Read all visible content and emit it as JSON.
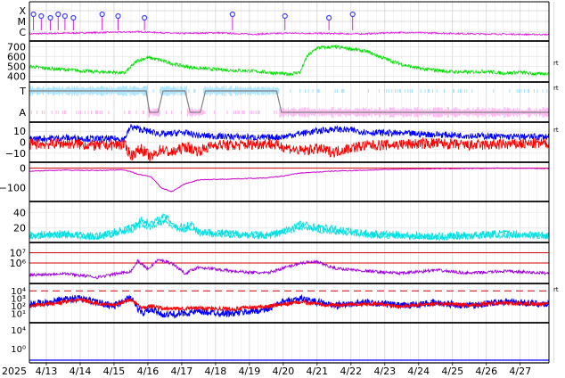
{
  "chart_data": {
    "type": "line",
    "year_label": "2025",
    "x_ticks": [
      "4/13",
      "4/14",
      "4/15",
      "4/16",
      "4/17",
      "4/18",
      "4/19",
      "4/20",
      "4/21",
      "4/22",
      "4/23",
      "4/24",
      "4/25",
      "4/26",
      "4/27"
    ],
    "x_range_days": [
      0,
      15.35
    ],
    "side_marks": [
      "rt",
      "rt",
      "rt",
      "rt"
    ],
    "panels": [
      {
        "id": "xray-flares",
        "tick_labels": [
          "X",
          "M",
          "C"
        ],
        "color": "#e020e0",
        "marker_color": "#4040ff",
        "marker_days": [
          0.12,
          0.35,
          0.62,
          0.85,
          1.05,
          1.3,
          2.15,
          2.62,
          3.4,
          6.0,
          7.55,
          8.85,
          9.55
        ],
        "series": [
          {
            "values": [
              0.34,
              0.36,
              0.38,
              0.4,
              0.35,
              0.37,
              0.33,
              0.36,
              0.35,
              0.34,
              0.38,
              0.36,
              0.34,
              0.33,
              0.32
            ]
          }
        ]
      },
      {
        "id": "solar-wind-speed",
        "tick_labels": [
          "700",
          "600",
          "500",
          "400"
        ],
        "ylim": [
          340,
          760
        ],
        "color": "#00e000",
        "series": [
          {
            "x": [
              0,
              0.5,
              1,
              1.5,
              2,
              2.5,
              2.8,
              3.2,
              3.5,
              3.8,
              4.2,
              4.6,
              5,
              5.5,
              6,
              6.5,
              7,
              7.3,
              7.6,
              8,
              8.2,
              8.5,
              9,
              9.5,
              10,
              10.5,
              11,
              11.5,
              12,
              12.5,
              13,
              13.5,
              14,
              14.5,
              15,
              15.35
            ],
            "values": [
              500,
              480,
              470,
              455,
              445,
              440,
              430,
              560,
              590,
              570,
              530,
              500,
              480,
              470,
              460,
              455,
              440,
              430,
              420,
              440,
              600,
              690,
              700,
              680,
              650,
              580,
              520,
              480,
              460,
              445,
              440,
              450,
              430,
              440,
              420,
              430
            ]
          }
        ]
      },
      {
        "id": "magnetic-sector",
        "tick_labels": [
          "T",
          "A"
        ],
        "toward_color": "#a0e0ff",
        "away_color": "#ffb0f0",
        "line_color": "#808080",
        "series": [
          {
            "x": [
              0,
              3.45,
              3.55,
              3.8,
              3.95,
              4.6,
              4.75,
              5.05,
              5.2,
              7.3,
              7.45,
              15.35
            ],
            "values": [
              1,
              1,
              0,
              0,
              1,
              1,
              0,
              0,
              1,
              1,
              0,
              0
            ]
          }
        ]
      },
      {
        "id": "imf-components",
        "tick_labels": [
          "10",
          "0",
          "−10"
        ],
        "ylim": [
          -15,
          15
        ],
        "series": [
          {
            "color": "#0000ff",
            "x": [
              0,
              1,
              2,
              2.8,
              3,
              3.5,
              4,
              4.5,
              5,
              6,
              7,
              7.5,
              8,
              8.5,
              9,
              9.5,
              10,
              11,
              12,
              13,
              14,
              15.35
            ],
            "values": [
              3,
              4,
              3,
              3,
              14,
              10,
              7,
              9,
              6,
              5,
              4,
              5,
              8,
              10,
              12,
              11,
              9,
              8,
              7,
              6,
              5,
              5
            ]
          },
          {
            "color": "#ff0000",
            "x": [
              0,
              1,
              2,
              2.8,
              3,
              3.3,
              3.6,
              3.9,
              4.2,
              4.6,
              5,
              5.5,
              6,
              7,
              7.5,
              8,
              8.5,
              9,
              9.5,
              10,
              11,
              12,
              13,
              14,
              15.35
            ],
            "values": [
              -2,
              -1,
              -3,
              -2,
              -12,
              -6,
              -14,
              -6,
              -10,
              -4,
              -8,
              -2,
              -3,
              -1,
              -4,
              -8,
              -6,
              -9,
              -5,
              -3,
              -2,
              -1,
              -3,
              -2,
              -1
            ]
          }
        ]
      },
      {
        "id": "dst-index",
        "tick_labels": [
          "0",
          "−100"
        ],
        "ylim": [
          -170,
          30
        ],
        "series": [
          {
            "color": "#cc00cc",
            "x": [
              0,
              1,
              2,
              2.8,
              3.2,
              3.6,
              3.9,
              4.2,
              4.6,
              5,
              6,
              7,
              7.5,
              8,
              8.5,
              9,
              10,
              11,
              12,
              13,
              14,
              15.35
            ],
            "values": [
              -15,
              -10,
              -12,
              -8,
              -30,
              -45,
              -100,
              -120,
              -80,
              -60,
              -55,
              -50,
              -40,
              -25,
              -20,
              -15,
              -10,
              -5,
              -3,
              -2,
              0,
              -2
            ]
          }
        ]
      },
      {
        "id": "kp-like-index",
        "tick_labels": [
          "40",
          "20"
        ],
        "ylim": [
          0,
          55
        ],
        "color": "#00e0e0",
        "series": [
          {
            "x": [
              0,
              1,
              2,
              3,
              3.3,
              3.6,
              4,
              4.4,
              4.8,
              5,
              6,
              7,
              7.5,
              8,
              8.5,
              9,
              10,
              11,
              12,
              13,
              14,
              15.35
            ],
            "values": [
              10,
              12,
              8,
              20,
              30,
              25,
              35,
              20,
              25,
              15,
              12,
              10,
              15,
              25,
              20,
              18,
              12,
              10,
              8,
              10,
              12,
              10
            ]
          }
        ]
      },
      {
        "id": "electron-flux",
        "tick_labels": [
          "10⁷",
          "10⁶"
        ],
        "ylim_log": [
          4,
          8
        ],
        "color": "#a000e0",
        "ref_levels": [
          7,
          6
        ],
        "ref_color": "#d00000",
        "series": [
          {
            "x": [
              0,
              1,
              2,
              3,
              3.2,
              3.5,
              3.8,
              4.2,
              4.6,
              5,
              6,
              7,
              7.5,
              8,
              8.5,
              9,
              10,
              11,
              12,
              13,
              14,
              15.35
            ],
            "values": [
              4.8,
              5.0,
              4.6,
              5.2,
              6.2,
              5.4,
              6.3,
              6.0,
              5.0,
              5.6,
              5.2,
              5.0,
              5.5,
              6.0,
              6.1,
              5.5,
              5.2,
              5.0,
              5.3,
              5.0,
              5.2,
              5.0
            ]
          }
        ]
      },
      {
        "id": "proton-flux",
        "tick_labels": [
          "10⁴",
          "10³",
          "10²",
          "10¹"
        ],
        "ylim_log": [
          0,
          4.5
        ],
        "ref_level": 4,
        "ref_color": "#d00000",
        "series": [
          {
            "color": "#0000ff",
            "x": [
              0,
              1,
              1.5,
              2,
              2.5,
              3,
              3.3,
              3.6,
              4,
              5,
              6,
              7,
              7.5,
              8,
              9,
              10,
              11,
              12,
              13,
              14,
              15.35
            ],
            "values": [
              2.2,
              2.8,
              3.0,
              2.5,
              2.0,
              3.2,
              1.0,
              1.5,
              0.8,
              1.2,
              1.0,
              1.5,
              2.5,
              3.0,
              2.0,
              2.5,
              2.0,
              2.4,
              2.0,
              2.6,
              2.2
            ]
          },
          {
            "color": "#ff0000",
            "x": [
              0,
              1,
              1.5,
              2,
              2.5,
              3,
              3.3,
              3.6,
              4,
              5,
              6,
              7,
              7.5,
              8,
              9,
              10,
              11,
              12,
              13,
              14,
              15.35
            ],
            "values": [
              2.0,
              2.5,
              2.8,
              2.3,
              2.1,
              2.9,
              1.8,
              2.0,
              1.6,
              1.7,
              1.6,
              1.9,
              2.2,
              2.5,
              2.1,
              2.3,
              2.0,
              2.3,
              2.1,
              2.4,
              2.2
            ]
          }
        ]
      },
      {
        "id": "high-energy-flux",
        "tick_labels": [
          "10⁴",
          "10⁰"
        ],
        "color": "#0000ff",
        "series": [
          {
            "values": [
              0.1,
              0.1,
              0.1,
              0.1,
              0.1,
              0.1,
              0.1,
              0.1,
              0.1,
              0.1,
              0.1,
              0.1,
              0.1,
              0.1,
              0.1
            ]
          }
        ]
      }
    ]
  }
}
